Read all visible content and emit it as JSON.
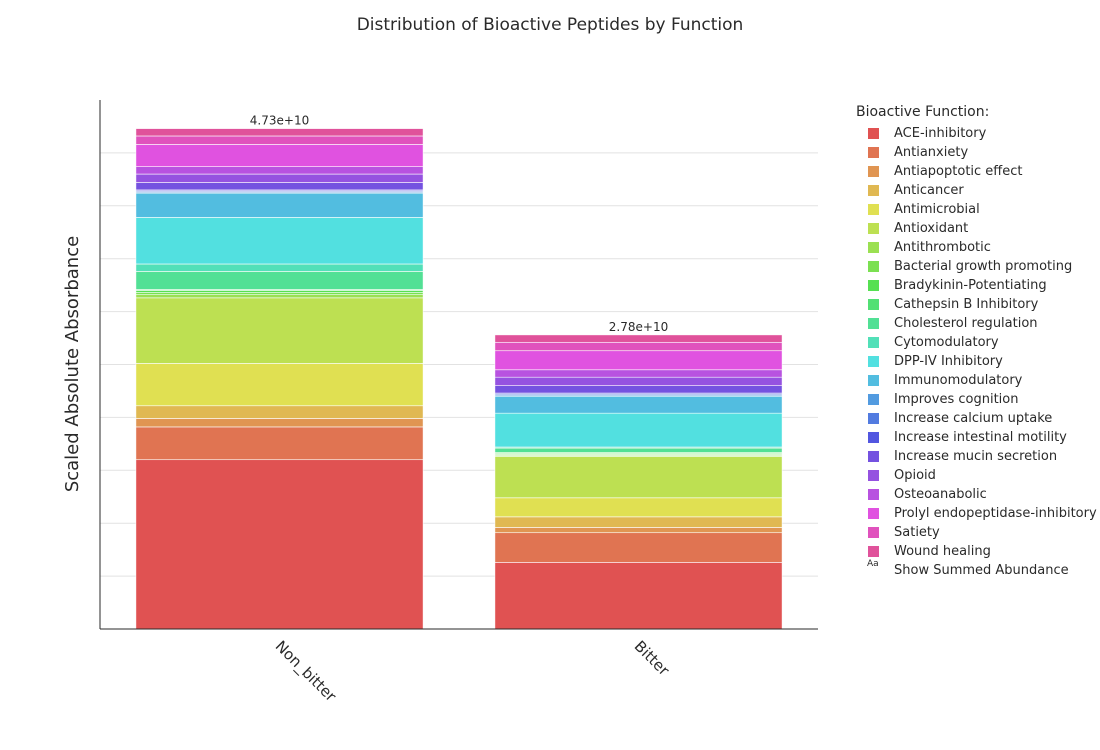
{
  "chart_data": {
    "type": "bar",
    "stacked": true,
    "title": "Distribution of Bioactive Peptides by Function",
    "xlabel": "",
    "ylabel": "Scaled Absolute Absorbance",
    "ylim": [
      0,
      50000000000.0
    ],
    "ytick_values": [
      0,
      5000000000.0,
      10000000000.0,
      15000000000.0,
      20000000000.0,
      25000000000.0,
      30000000000.0,
      35000000000.0,
      40000000000.0,
      45000000000.0
    ],
    "ytick_labels_visible": false,
    "grid": true,
    "categories": [
      "Non_bitter",
      "Bitter"
    ],
    "totals": [
      47300000000.0,
      27800000000.0
    ],
    "total_labels": [
      "4.73e+10",
      "2.78e+10"
    ],
    "legend_title": "Bioactive Function:",
    "legend_extra": "Show Summed Abundance",
    "legend_extra_icon": "Aa",
    "series": [
      {
        "name": "ACE-inhibitory",
        "color": "#e05252",
        "values": [
          16000000000.0,
          6300000000.0
        ]
      },
      {
        "name": "Antianxiety",
        "color": "#e07452",
        "values": [
          3100000000.0,
          2800000000.0
        ]
      },
      {
        "name": "Antiapoptotic effect",
        "color": "#e09552",
        "values": [
          800000000.0,
          500000000.0
        ]
      },
      {
        "name": "Anticancer",
        "color": "#e0b852",
        "values": [
          1200000000.0,
          1000000000.0
        ]
      },
      {
        "name": "Antimicrobial",
        "color": "#e0e052",
        "values": [
          4000000000.0,
          1800000000.0
        ]
      },
      {
        "name": "Antioxidant",
        "color": "#bde052",
        "values": [
          6200000000.0,
          3900000000.0
        ]
      },
      {
        "name": "Antithrombotic",
        "color": "#9be052",
        "values": [
          300000000.0,
          100000000.0
        ]
      },
      {
        "name": "Bacterial growth promoting",
        "color": "#7be052",
        "values": [
          200000000.0,
          100000000.0
        ]
      },
      {
        "name": "Bradykinin-Potentiating",
        "color": "#56e052",
        "values": [
          200000000.0,
          100000000.0
        ]
      },
      {
        "name": "Cathepsin B Inhibitory",
        "color": "#52e074",
        "values": [
          100000000.0,
          100000000.0
        ]
      },
      {
        "name": "Cholesterol regulation",
        "color": "#52e095",
        "values": [
          1700000000.0,
          400000000.0
        ]
      },
      {
        "name": "Cytomodulatory",
        "color": "#52e0b8",
        "values": [
          700000000.0,
          100000000.0
        ]
      },
      {
        "name": "DPP-IV Inhibitory",
        "color": "#52e0e0",
        "values": [
          4400000000.0,
          3200000000.0
        ]
      },
      {
        "name": "Immunomodulatory",
        "color": "#52bde0",
        "values": [
          2300000000.0,
          1600000000.0
        ]
      },
      {
        "name": "Improves cognition",
        "color": "#529be0",
        "values": [
          100000000.0,
          100000000.0
        ]
      },
      {
        "name": "Increase calcium uptake",
        "color": "#527be0",
        "values": [
          100000000.0,
          100000000.0
        ]
      },
      {
        "name": "Increase intestinal motility",
        "color": "#5256e0",
        "values": [
          100000000.0,
          100000000.0
        ]
      },
      {
        "name": "Increase mucin secretion",
        "color": "#7452e0",
        "values": [
          700000000.0,
          700000000.0
        ]
      },
      {
        "name": "Opioid",
        "color": "#9552e0",
        "values": [
          800000000.0,
          800000000.0
        ]
      },
      {
        "name": "Osteoanabolic",
        "color": "#b852e0",
        "values": [
          700000000.0,
          700000000.0
        ]
      },
      {
        "name": "Prolyl endopeptidase-inhibitory",
        "color": "#e052e0",
        "values": [
          2100000000.0,
          1800000000.0
        ]
      },
      {
        "name": "Satiety",
        "color": "#e052bd",
        "values": [
          800000000.0,
          800000000.0
        ]
      },
      {
        "name": "Wound healing",
        "color": "#e0529b",
        "values": [
          700000000.0,
          700000000.0
        ]
      }
    ]
  }
}
